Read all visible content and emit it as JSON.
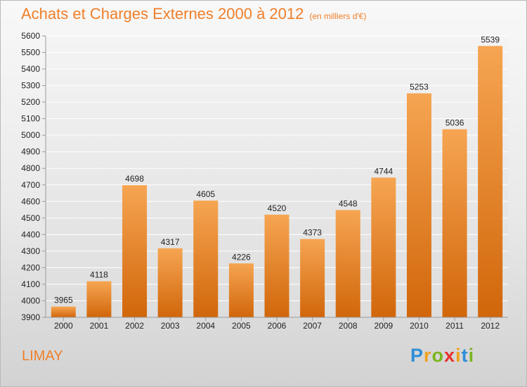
{
  "chart_data": {
    "type": "bar",
    "title": "Achats et Charges Externes 2000 à 2012",
    "subtitle": "(en milliers d'€)",
    "categories": [
      "2000",
      "2001",
      "2002",
      "2003",
      "2004",
      "2005",
      "2006",
      "2007",
      "2008",
      "2009",
      "2010",
      "2011",
      "2012"
    ],
    "values": [
      3965,
      4118,
      4698,
      4317,
      4605,
      4226,
      4520,
      4373,
      4548,
      4744,
      5253,
      5036,
      5539
    ],
    "ylim": [
      3900,
      5600
    ],
    "yticks": [
      3900,
      4000,
      4100,
      4200,
      4300,
      4400,
      4500,
      4600,
      4700,
      4800,
      4900,
      5000,
      5100,
      5200,
      5300,
      5400,
      5500,
      5600
    ],
    "grid": true,
    "xlabel": "",
    "ylabel": ""
  },
  "footer": {
    "city": "LIMAY",
    "logo_letters": [
      {
        "ch": "P",
        "color": "#2f8ed8"
      },
      {
        "ch": "r",
        "color": "#f0a11c"
      },
      {
        "ch": "o",
        "color": "#7ab51d"
      },
      {
        "ch": "x",
        "color": "#e8312d"
      },
      {
        "ch": "i",
        "color": "#f0a11c"
      },
      {
        "ch": "t",
        "color": "#2f8ed8"
      },
      {
        "ch": "i",
        "color": "#7ab51d"
      }
    ]
  },
  "colors": {
    "title": "#ef7f2a",
    "bar_top": "#f6a552",
    "bar_bottom": "#d1660a",
    "grid": "#ffffff",
    "axis": "#9a9a9a",
    "text": "#222222"
  }
}
